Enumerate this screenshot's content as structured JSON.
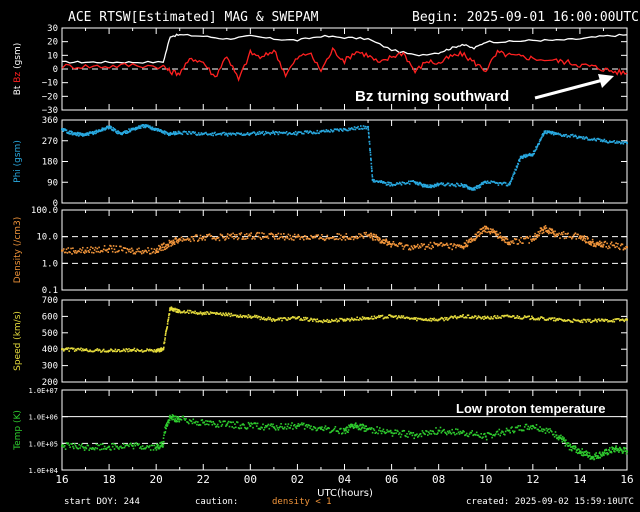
{
  "header": {
    "title": "ACE RTSW[Estimated] MAG & SWEPAM",
    "begin": "Begin: 2025-09-01 16:00:00UTC"
  },
  "footer": {
    "start_doy": "start DOY: 244",
    "caution_label": "caution:",
    "caution_text": "density < 1",
    "created": "created: 2025-09-02 15:59:10UTC"
  },
  "colors": {
    "bt": "#ffffff",
    "bz": "#ff2020",
    "phi": "#29a9e0",
    "density": "#f0943a",
    "speed": "#e6dc3c",
    "temp": "#2ecc2e",
    "frame": "#ffffff",
    "dashed": "#ffffff",
    "annotation": "#ffffff",
    "caution": "#f0943a"
  },
  "chart_data": {
    "type": "line",
    "title": "ACE RTSW[Estimated] MAG & SWEPAM",
    "xlabel": "UTC(hours)",
    "xlim": [
      16,
      40
    ],
    "x_tick_labels": [
      "16",
      "18",
      "20",
      "22",
      "00",
      "02",
      "04",
      "06",
      "08",
      "10",
      "12",
      "14",
      "16"
    ],
    "panels": [
      {
        "name": "mag",
        "ylabel_parts": [
          "Bt",
          "Bz",
          "(gsm)"
        ],
        "ylim": [
          -30,
          30
        ],
        "scale": "linear",
        "tick_labels": [
          "30",
          "20",
          "10",
          "0",
          "−10",
          "−20",
          "−30"
        ],
        "tick_values": [
          30,
          20,
          10,
          0,
          -10,
          -20,
          -30
        ],
        "dashed_lines": [
          0
        ],
        "series": [
          {
            "name": "Bt",
            "color_key": "bt",
            "style": "line",
            "points": [
              [
                16,
                5
              ],
              [
                17,
                5
              ],
              [
                18,
                5
              ],
              [
                19,
                5
              ],
              [
                20.3,
                5
              ],
              [
                20.6,
                24
              ],
              [
                21,
                25
              ],
              [
                22,
                24
              ],
              [
                23,
                22
              ],
              [
                24,
                24
              ],
              [
                25,
                22
              ],
              [
                26,
                21
              ],
              [
                27,
                24
              ],
              [
                28,
                23
              ],
              [
                29,
                22
              ],
              [
                30,
                14
              ],
              [
                31,
                10
              ],
              [
                32,
                12
              ],
              [
                32.5,
                15
              ],
              [
                33,
                18
              ],
              [
                33.5,
                15
              ],
              [
                34,
                20
              ],
              [
                35,
                20
              ],
              [
                36,
                21
              ],
              [
                37,
                21
              ],
              [
                38,
                22
              ],
              [
                39,
                24
              ],
              [
                40,
                25
              ]
            ]
          },
          {
            "name": "Bz",
            "color_key": "bz",
            "style": "line",
            "points": [
              [
                16,
                2
              ],
              [
                17,
                2
              ],
              [
                18,
                2
              ],
              [
                19,
                3
              ],
              [
                20.3,
                2
              ],
              [
                20.6,
                -2
              ],
              [
                21,
                -3
              ],
              [
                21.5,
                8
              ],
              [
                22,
                5
              ],
              [
                22.5,
                -6
              ],
              [
                23,
                10
              ],
              [
                23.5,
                -8
              ],
              [
                24,
                12
              ],
              [
                24.5,
                8
              ],
              [
                25,
                14
              ],
              [
                25.5,
                -4
              ],
              [
                26,
                8
              ],
              [
                26.5,
                12
              ],
              [
                27,
                -1
              ],
              [
                27.5,
                14
              ],
              [
                28,
                6
              ],
              [
                28.5,
                13
              ],
              [
                29,
                10
              ],
              [
                29.5,
                4
              ],
              [
                30,
                9
              ],
              [
                30.5,
                12
              ],
              [
                31,
                -2
              ],
              [
                31.5,
                6
              ],
              [
                32,
                4
              ],
              [
                32.5,
                9
              ],
              [
                33,
                11
              ],
              [
                33.5,
                5
              ],
              [
                34,
                -1
              ],
              [
                34.5,
                12
              ],
              [
                35,
                10
              ],
              [
                35.5,
                9
              ],
              [
                36,
                8
              ],
              [
                37,
                6
              ],
              [
                37.5,
                5
              ],
              [
                38,
                3
              ],
              [
                38.5,
                2
              ],
              [
                39,
                0
              ],
              [
                39.5,
                -2
              ],
              [
                40,
                -3
              ]
            ]
          }
        ]
      },
      {
        "name": "phi",
        "ylabel": "Phi (gsm)",
        "ylim": [
          0,
          360
        ],
        "scale": "linear",
        "tick_labels": [
          "360",
          "270",
          "180",
          "90",
          "0"
        ],
        "tick_values": [
          360,
          270,
          180,
          90,
          0
        ],
        "series": [
          {
            "name": "Phi",
            "color_key": "phi",
            "style": "dots",
            "points": [
              [
                16,
                320
              ],
              [
                16.5,
                300
              ],
              [
                17,
                295
              ],
              [
                17.5,
                310
              ],
              [
                18,
                330
              ],
              [
                18.5,
                300
              ],
              [
                19,
                320
              ],
              [
                19.5,
                335
              ],
              [
                20,
                320
              ],
              [
                20.5,
                300
              ],
              [
                21,
                305
              ],
              [
                22,
                300
              ],
              [
                23,
                298
              ],
              [
                24,
                300
              ],
              [
                25,
                305
              ],
              [
                26,
                302
              ],
              [
                27,
                310
              ],
              [
                28,
                320
              ],
              [
                29,
                330
              ],
              [
                29.2,
                100
              ],
              [
                30,
                80
              ],
              [
                31,
                90
              ],
              [
                31.5,
                70
              ],
              [
                32,
                80
              ],
              [
                33,
                78
              ],
              [
                33.5,
                60
              ],
              [
                34,
                90
              ],
              [
                35,
                80
              ],
              [
                35.5,
                200
              ],
              [
                36,
                210
              ],
              [
                36.5,
                310
              ],
              [
                37,
                300
              ],
              [
                38,
                285
              ],
              [
                39,
                270
              ],
              [
                40,
                260
              ]
            ]
          }
        ]
      },
      {
        "name": "density",
        "ylabel": "Density (/cm3)",
        "ylim": [
          0.1,
          100
        ],
        "scale": "log",
        "tick_labels": [
          "100.0",
          "10.0",
          "1.0",
          "0.1"
        ],
        "tick_values": [
          100,
          10,
          1,
          0.1
        ],
        "dashed_lines": [
          10,
          1
        ],
        "series": [
          {
            "name": "Density",
            "color_key": "density",
            "style": "dots",
            "points": [
              [
                16,
                3
              ],
              [
                17,
                3
              ],
              [
                18,
                3.5
              ],
              [
                19,
                3
              ],
              [
                20,
                3
              ],
              [
                20.5,
                5
              ],
              [
                21,
                8
              ],
              [
                22,
                9
              ],
              [
                23,
                10
              ],
              [
                24,
                11
              ],
              [
                25,
                10
              ],
              [
                26,
                10
              ],
              [
                27,
                9
              ],
              [
                28,
                10
              ],
              [
                29,
                11
              ],
              [
                29.5,
                8
              ],
              [
                30,
                5
              ],
              [
                31,
                4
              ],
              [
                32,
                5
              ],
              [
                33,
                4
              ],
              [
                33.5,
                8
              ],
              [
                34,
                20
              ],
              [
                34.5,
                12
              ],
              [
                35,
                6
              ],
              [
                36,
                8
              ],
              [
                36.5,
                20
              ],
              [
                37,
                12
              ],
              [
                38,
                10
              ],
              [
                38.5,
                6
              ],
              [
                39,
                5
              ],
              [
                40,
                4
              ]
            ]
          }
        ]
      },
      {
        "name": "speed",
        "ylabel": "Speed (km/s)",
        "ylim": [
          200,
          700
        ],
        "scale": "linear",
        "tick_labels": [
          "700",
          "600",
          "500",
          "400",
          "300",
          "200"
        ],
        "tick_values": [
          700,
          600,
          500,
          400,
          300,
          200
        ],
        "series": [
          {
            "name": "Speed",
            "color_key": "speed",
            "style": "dots",
            "points": [
              [
                16,
                400
              ],
              [
                17,
                395
              ],
              [
                18,
                390
              ],
              [
                19,
                395
              ],
              [
                20,
                390
              ],
              [
                20.3,
                400
              ],
              [
                20.6,
                650
              ],
              [
                21,
                630
              ],
              [
                22,
                620
              ],
              [
                23,
                610
              ],
              [
                24,
                600
              ],
              [
                25,
                580
              ],
              [
                26,
                590
              ],
              [
                27,
                570
              ],
              [
                28,
                580
              ],
              [
                29,
                590
              ],
              [
                30,
                600
              ],
              [
                31,
                585
              ],
              [
                32,
                580
              ],
              [
                33,
                600
              ],
              [
                34,
                590
              ],
              [
                35,
                600
              ],
              [
                36,
                590
              ],
              [
                37,
                580
              ],
              [
                38,
                570
              ],
              [
                39,
                575
              ],
              [
                40,
                580
              ]
            ]
          }
        ]
      },
      {
        "name": "temp",
        "ylabel": "Temp (K)",
        "ylim": [
          10000,
          10000000
        ],
        "scale": "log",
        "tick_labels": [
          "1.0E+07",
          "1.0E+06",
          "1.0E+05",
          "1.0E+04"
        ],
        "tick_values": [
          10000000,
          1000000,
          100000,
          10000
        ],
        "solid_lines": [
          1000000
        ],
        "dashed_lines": [
          100000
        ],
        "series": [
          {
            "name": "Temp",
            "color_key": "temp",
            "style": "dots",
            "points": [
              [
                16,
                80000
              ],
              [
                17,
                70000
              ],
              [
                18,
                75000
              ],
              [
                19,
                80000
              ],
              [
                20,
                70000
              ],
              [
                20.3,
                90000
              ],
              [
                20.6,
                900000
              ],
              [
                21,
                800000
              ],
              [
                22,
                600000
              ],
              [
                23,
                500000
              ],
              [
                24,
                450000
              ],
              [
                25,
                400000
              ],
              [
                26,
                450000
              ],
              [
                27,
                350000
              ],
              [
                28,
                300000
              ],
              [
                28.5,
                450000
              ],
              [
                29,
                350000
              ],
              [
                30,
                250000
              ],
              [
                31,
                200000
              ],
              [
                32,
                300000
              ],
              [
                33,
                250000
              ],
              [
                34,
                180000
              ],
              [
                35,
                300000
              ],
              [
                36,
                450000
              ],
              [
                37,
                200000
              ],
              [
                37.5,
                80000
              ],
              [
                38,
                50000
              ],
              [
                38.5,
                30000
              ],
              [
                39,
                40000
              ],
              [
                39.5,
                60000
              ],
              [
                40,
                50000
              ]
            ]
          }
        ]
      }
    ],
    "annotations": [
      {
        "text": "Bz turning southward",
        "panel": "mag"
      },
      {
        "text": "Low proton temperature",
        "panel": "temp"
      }
    ]
  }
}
